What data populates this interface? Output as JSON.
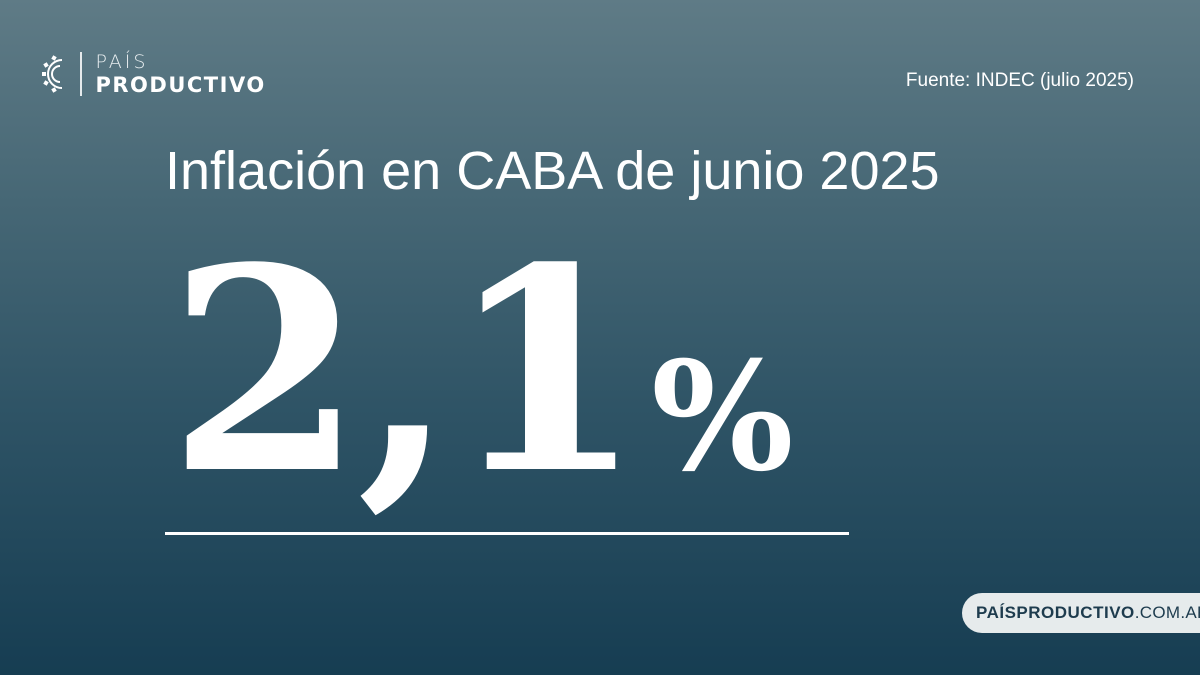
{
  "brand": {
    "line1": "PAÍS",
    "line2": "PRODUCTIVO",
    "icon": "gear-icon"
  },
  "source": "Fuente: INDEC (julio 2025)",
  "headline": "Inflación en CABA de junio 2025",
  "stat": {
    "number": "2,1",
    "unit": "%"
  },
  "website": {
    "bold": "PAÍSPRODUCTIVO",
    "light": ".COM.AR"
  },
  "colors": {
    "background_top": "#5f7b86",
    "background_bottom": "#163d52",
    "text": "#ffffff",
    "badge_bg": "#e6ebec",
    "badge_text": "#1e3c4e"
  }
}
